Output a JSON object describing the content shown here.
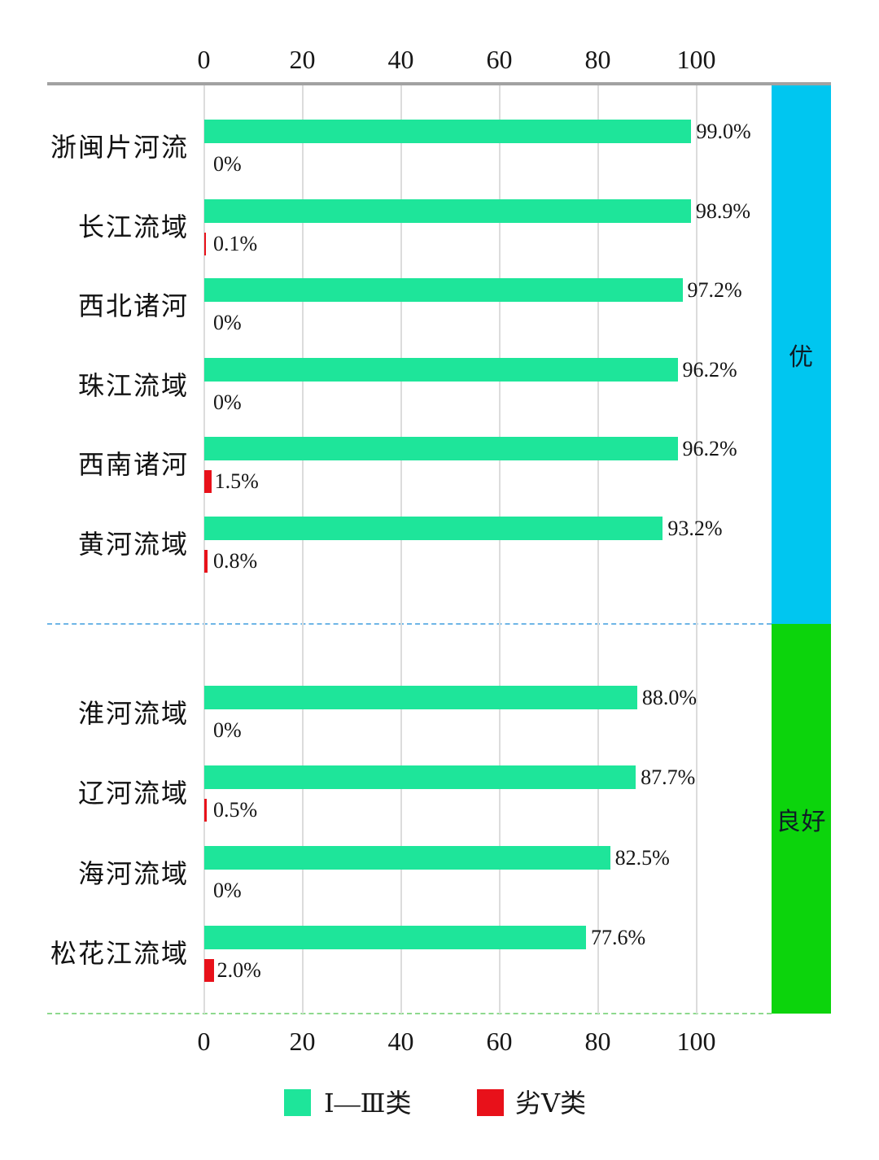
{
  "chart_data": {
    "type": "bar",
    "orientation": "horizontal",
    "title": "",
    "x_axis": {
      "ticks": [
        0,
        20,
        40,
        60,
        80,
        100
      ],
      "range": [
        0,
        115
      ],
      "grid": true
    },
    "series_names": [
      "Ⅰ—Ⅲ类",
      "劣Ⅴ类"
    ],
    "rows": [
      {
        "category": "浙闽片河流",
        "class1_3_pct": 99.0,
        "class1_3_label": "99.0%",
        "worse5_pct": 0,
        "worse5_label": "0%",
        "section": "优"
      },
      {
        "category": "长江流域",
        "class1_3_pct": 98.9,
        "class1_3_label": "98.9%",
        "worse5_pct": 0.1,
        "worse5_label": "0.1%",
        "section": "优"
      },
      {
        "category": "西北诸河",
        "class1_3_pct": 97.2,
        "class1_3_label": "97.2%",
        "worse5_pct": 0,
        "worse5_label": "0%",
        "section": "优"
      },
      {
        "category": "珠江流域",
        "class1_3_pct": 96.2,
        "class1_3_label": "96.2%",
        "worse5_pct": 0,
        "worse5_label": "0%",
        "section": "优"
      },
      {
        "category": "西南诸河",
        "class1_3_pct": 96.2,
        "class1_3_label": "96.2%",
        "worse5_pct": 1.5,
        "worse5_label": "1.5%",
        "section": "优"
      },
      {
        "category": "黄河流域",
        "class1_3_pct": 93.2,
        "class1_3_label": "93.2%",
        "worse5_pct": 0.8,
        "worse5_label": "0.8%",
        "section": "优"
      },
      {
        "category": "淮河流域",
        "class1_3_pct": 88.0,
        "class1_3_label": "88.0%",
        "worse5_pct": 0,
        "worse5_label": "0%",
        "section": "良好"
      },
      {
        "category": "辽河流域",
        "class1_3_pct": 87.7,
        "class1_3_label": "87.7%",
        "worse5_pct": 0.5,
        "worse5_label": "0.5%",
        "section": "良好"
      },
      {
        "category": "海河流域",
        "class1_3_pct": 82.5,
        "class1_3_label": "82.5%",
        "worse5_pct": 0,
        "worse5_label": "0%",
        "section": "良好"
      },
      {
        "category": "松花江流域",
        "class1_3_pct": 77.6,
        "class1_3_label": "77.6%",
        "worse5_pct": 2.0,
        "worse5_label": "2.0%",
        "section": "良好"
      }
    ],
    "sections": [
      {
        "label": "优",
        "color": "#00c6f0",
        "row_count": 6
      },
      {
        "label": "良好",
        "color": "#0cd40c",
        "row_count": 4
      }
    ],
    "legend": [
      {
        "label": "Ⅰ—Ⅲ类",
        "color": "#1ee59a"
      },
      {
        "label": "劣Ⅴ类",
        "color": "#e8111a"
      }
    ],
    "colors": {
      "axis_line": "#a2a2a2",
      "gridline": "#dcdcdc",
      "separator_blue_dashed": "#6fb6e6",
      "separator_green_dashed": "#8ed98e",
      "text": "#161616"
    },
    "legend_position": "bottom"
  }
}
